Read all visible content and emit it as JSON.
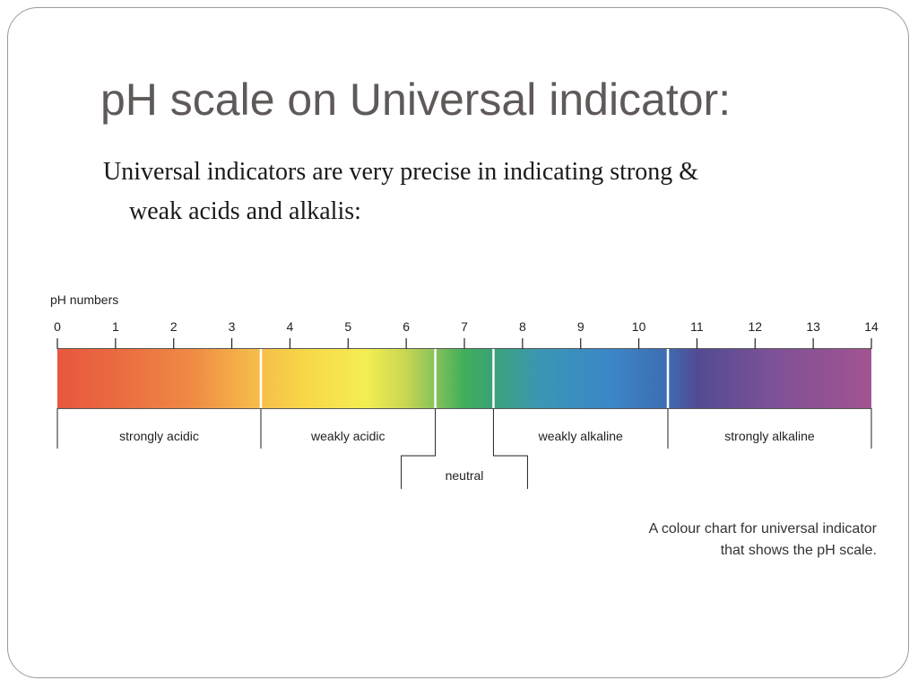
{
  "slide": {
    "title": "pH scale on Universal indicator:",
    "body_line1": "Universal indicators are very precise in indicating strong &",
    "body_line2": "weak acids and alkalis:"
  },
  "diagram": {
    "axis_label": "pH numbers",
    "ticks": [
      "0",
      "1",
      "2",
      "3",
      "4",
      "5",
      "6",
      "7",
      "8",
      "9",
      "10",
      "11",
      "12",
      "13",
      "14"
    ],
    "ph_min": 0,
    "ph_max": 14,
    "color_stops": [
      {
        "ph": 0,
        "color": "#e8573e"
      },
      {
        "ph": 1,
        "color": "#ea6a40"
      },
      {
        "ph": 2.3,
        "color": "#ef8a44"
      },
      {
        "ph": 3.4,
        "color": "#f6bb4a"
      },
      {
        "ph": 4.3,
        "color": "#f8d848"
      },
      {
        "ph": 5.3,
        "color": "#f4ee52"
      },
      {
        "ph": 6.0,
        "color": "#c8d653"
      },
      {
        "ph": 6.5,
        "color": "#86c25a"
      },
      {
        "ph": 7.0,
        "color": "#3fae5a"
      },
      {
        "ph": 7.5,
        "color": "#3aa277"
      },
      {
        "ph": 8.3,
        "color": "#3a96b4"
      },
      {
        "ph": 9.5,
        "color": "#3b87c8"
      },
      {
        "ph": 10.5,
        "color": "#3d6cb1"
      },
      {
        "ph": 11.0,
        "color": "#514b94"
      },
      {
        "ph": 12.3,
        "color": "#7d5196"
      },
      {
        "ph": 14,
        "color": "#a35392"
      }
    ],
    "boundaries": [
      3.5,
      6.5,
      7.5,
      10.5
    ],
    "ranges": [
      {
        "label": "strongly acidic",
        "from": 0,
        "to": 3.5
      },
      {
        "label": "weakly acidic",
        "from": 3.5,
        "to": 6.5
      },
      {
        "label": "weakly alkaline",
        "from": 7.5,
        "to": 10.5
      },
      {
        "label": "strongly alkaline",
        "from": 10.5,
        "to": 14
      }
    ],
    "neutral_label": "neutral",
    "caption_line1": "A colour chart for universal indicator",
    "caption_line2": "that shows the pH scale."
  }
}
